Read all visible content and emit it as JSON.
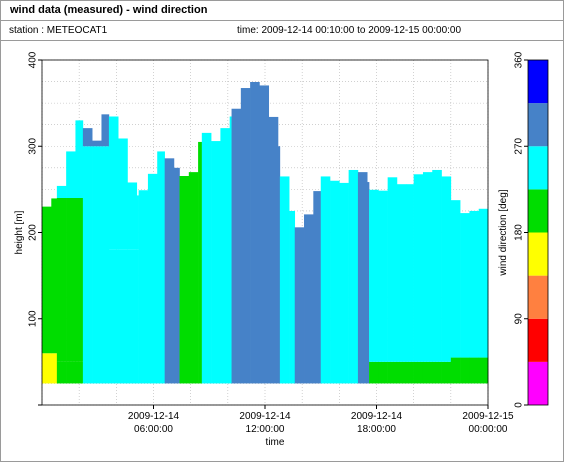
{
  "header": {
    "title": "wind data (measured) - wind direction",
    "station": "station : METEOCAT1",
    "time_range": "time: 2009-12-14 00:10:00 to 2009-12-15 00:00:00"
  },
  "chart_data": {
    "type": "heatmap",
    "xlabel": "time",
    "ylabel": "height [m]",
    "xlim": [
      0,
      24
    ],
    "ylim": [
      0,
      400
    ],
    "x_ticks": [
      {
        "x": 6,
        "line1": "2009-12-14",
        "line2": "06:00:00"
      },
      {
        "x": 12,
        "line1": "2009-12-14",
        "line2": "12:00:00"
      },
      {
        "x": 18,
        "line1": "2009-12-14",
        "line2": "18:00:00"
      },
      {
        "x": 24,
        "line1": "2009-12-15",
        "line2": "00:00:00"
      }
    ],
    "y_ticks": [
      100,
      200,
      300,
      400
    ],
    "grid": true,
    "height_range": [
      25,
      375
    ],
    "colorbar": {
      "label": "wind direction [deg]",
      "ticks": [
        0,
        90,
        180,
        270,
        360
      ],
      "bins": [
        {
          "from": 0,
          "to": 45,
          "color": "#ff00ff"
        },
        {
          "from": 45,
          "to": 90,
          "color": "#ff0000"
        },
        {
          "from": 90,
          "to": 135,
          "color": "#ff8040"
        },
        {
          "from": 135,
          "to": 180,
          "color": "#ffff00"
        },
        {
          "from": 180,
          "to": 225,
          "color": "#00dd00"
        },
        {
          "from": 225,
          "to": 270,
          "color": "#00ffff"
        },
        {
          "from": 270,
          "to": 315,
          "color": "#4682c8"
        },
        {
          "from": 315,
          "to": 360,
          "color": "#0000ff"
        }
      ]
    },
    "profile_tops": [
      [
        0.0,
        225
      ],
      [
        0.5,
        235
      ],
      [
        1.0,
        250
      ],
      [
        1.5,
        290
      ],
      [
        2.0,
        330
      ],
      [
        2.5,
        320
      ],
      [
        3.0,
        305
      ],
      [
        3.5,
        345
      ],
      [
        4.0,
        330
      ],
      [
        4.5,
        300
      ],
      [
        5.0,
        240
      ],
      [
        5.5,
        250
      ],
      [
        6.0,
        270
      ],
      [
        6.5,
        300
      ],
      [
        7.0,
        280
      ],
      [
        7.5,
        270
      ],
      [
        8.0,
        255
      ],
      [
        8.5,
        305
      ],
      [
        9.0,
        320
      ],
      [
        9.5,
        300
      ],
      [
        10.0,
        330
      ],
      [
        10.5,
        345
      ],
      [
        11.0,
        370
      ],
      [
        11.5,
        375
      ],
      [
        12.0,
        370
      ],
      [
        12.5,
        330
      ],
      [
        13.0,
        270
      ],
      [
        13.5,
        220
      ],
      [
        14.0,
        200
      ],
      [
        14.5,
        230
      ],
      [
        15.0,
        260
      ],
      [
        15.5,
        270
      ],
      [
        16.0,
        250
      ],
      [
        16.5,
        265
      ],
      [
        17.0,
        280
      ],
      [
        17.5,
        260
      ],
      [
        18.0,
        245
      ],
      [
        18.5,
        250
      ],
      [
        19.0,
        270
      ],
      [
        19.5,
        250
      ],
      [
        20.0,
        260
      ],
      [
        20.5,
        275
      ],
      [
        21.0,
        265
      ],
      [
        21.5,
        280
      ],
      [
        22.0,
        250
      ],
      [
        22.5,
        225
      ],
      [
        23.0,
        220
      ],
      [
        23.5,
        230
      ],
      [
        24.0,
        225
      ]
    ],
    "direction_profiles": [
      {
        "from": 0.0,
        "to": 0.8,
        "layers": [
          [
            25,
            60,
            150
          ],
          [
            60,
            375,
            200
          ]
        ]
      },
      {
        "from": 0.8,
        "to": 2.2,
        "layers": [
          [
            25,
            50,
            190
          ],
          [
            50,
            240,
            200
          ],
          [
            240,
            375,
            245
          ]
        ]
      },
      {
        "from": 2.2,
        "to": 3.6,
        "layers": [
          [
            25,
            120,
            245
          ],
          [
            120,
            300,
            230
          ],
          [
            300,
            375,
            290
          ]
        ]
      },
      {
        "from": 3.6,
        "to": 5.2,
        "layers": [
          [
            25,
            180,
            240
          ],
          [
            180,
            375,
            255
          ]
        ]
      },
      {
        "from": 5.2,
        "to": 6.6,
        "layers": [
          [
            25,
            375,
            250
          ]
        ]
      },
      {
        "from": 6.6,
        "to": 7.4,
        "layers": [
          [
            25,
            375,
            290
          ]
        ]
      },
      {
        "from": 7.4,
        "to": 8.6,
        "layers": [
          [
            25,
            80,
            200
          ],
          [
            80,
            375,
            210
          ]
        ]
      },
      {
        "from": 8.6,
        "to": 10.2,
        "layers": [
          [
            25,
            375,
            250
          ]
        ]
      },
      {
        "from": 10.2,
        "to": 12.8,
        "layers": [
          [
            25,
            375,
            290
          ]
        ]
      },
      {
        "from": 12.8,
        "to": 13.6,
        "layers": [
          [
            25,
            375,
            250
          ]
        ]
      },
      {
        "from": 13.6,
        "to": 15.0,
        "layers": [
          [
            25,
            375,
            295
          ]
        ]
      },
      {
        "from": 15.0,
        "to": 17.0,
        "layers": [
          [
            25,
            375,
            250
          ]
        ]
      },
      {
        "from": 17.0,
        "to": 17.6,
        "layers": [
          [
            25,
            375,
            290
          ]
        ]
      },
      {
        "from": 17.6,
        "to": 20.0,
        "layers": [
          [
            25,
            50,
            200
          ],
          [
            50,
            375,
            250
          ]
        ]
      },
      {
        "from": 20.0,
        "to": 22.0,
        "layers": [
          [
            25,
            50,
            200
          ],
          [
            50,
            375,
            250
          ]
        ]
      },
      {
        "from": 22.0,
        "to": 24.0,
        "layers": [
          [
            25,
            55,
            190
          ],
          [
            55,
            375,
            250
          ]
        ]
      }
    ]
  }
}
